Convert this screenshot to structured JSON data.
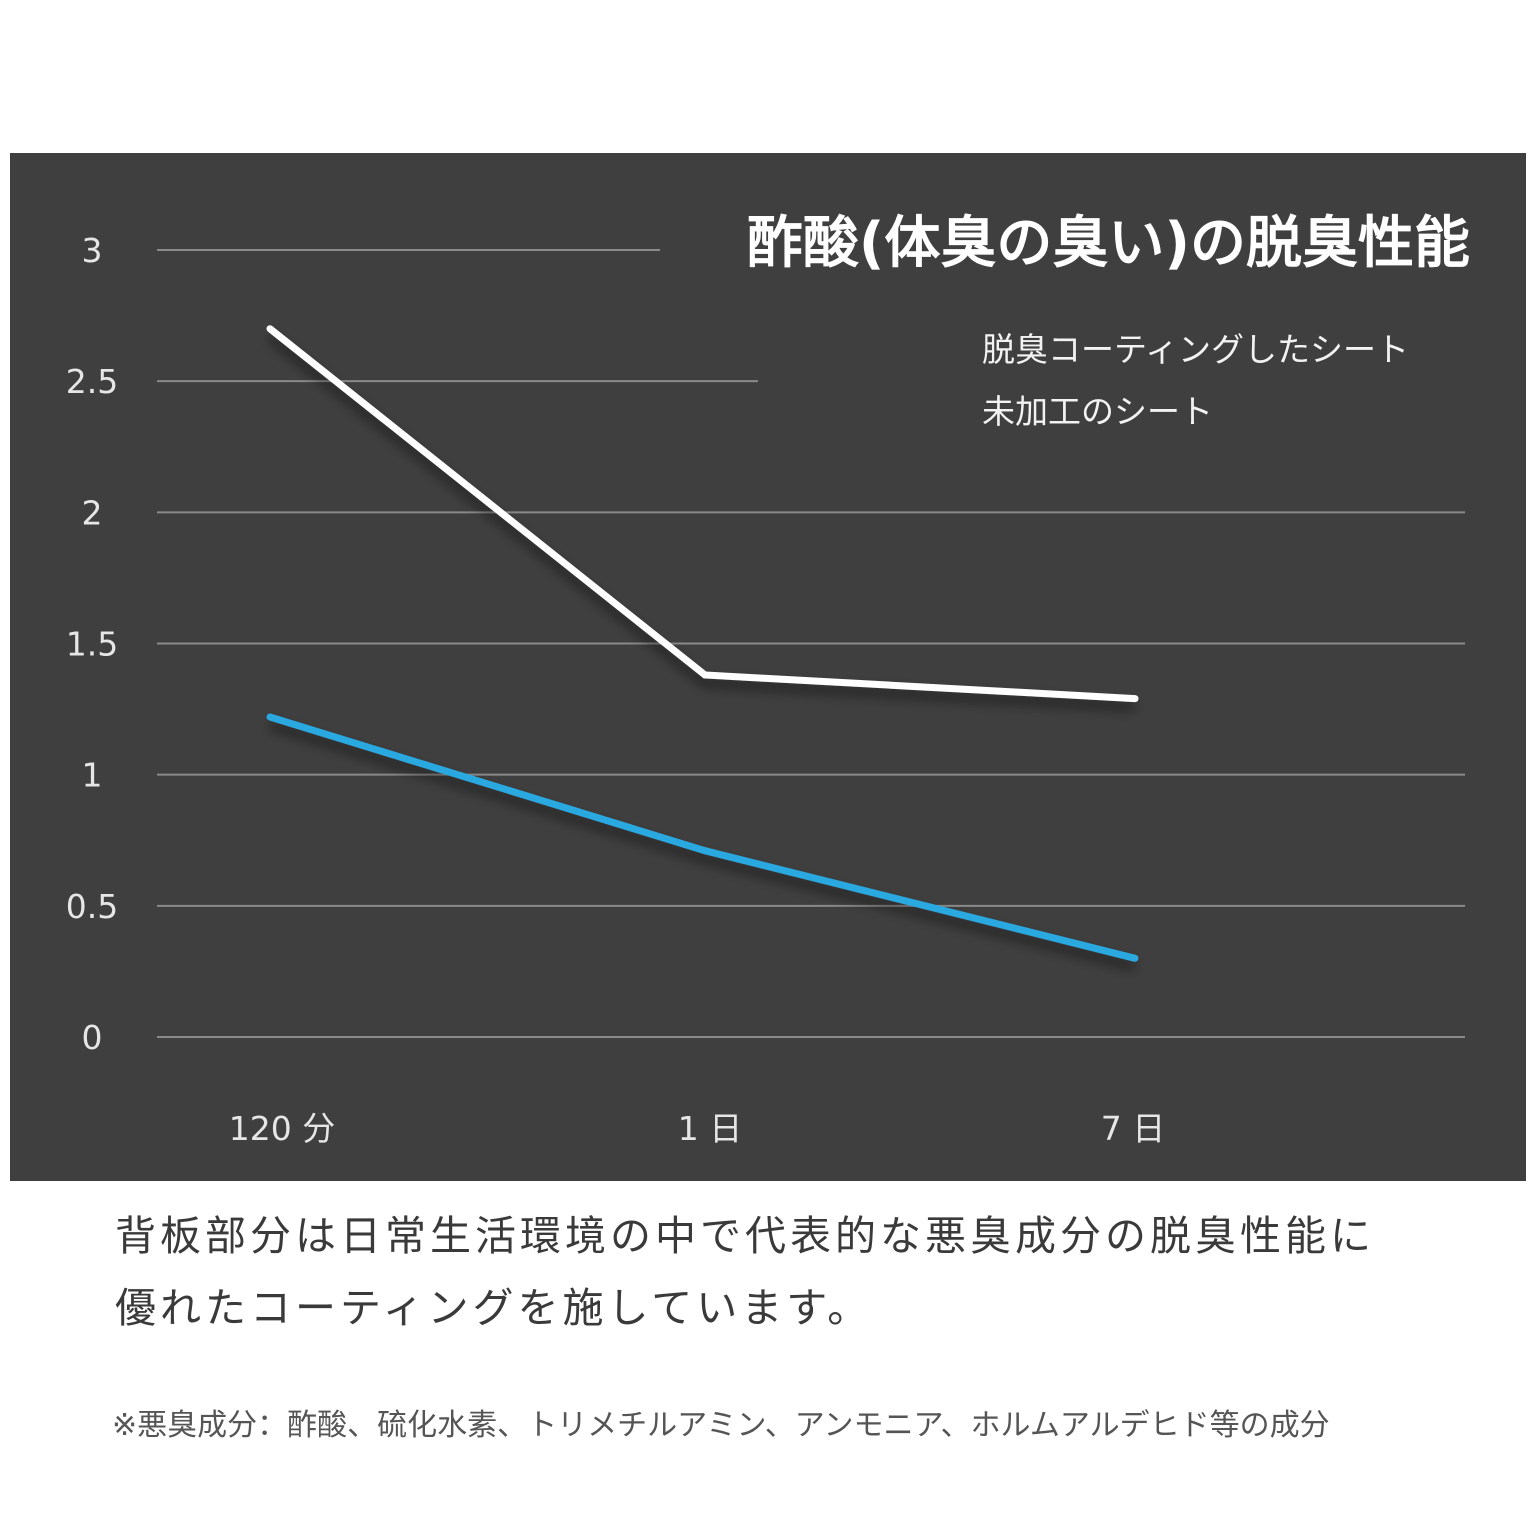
{
  "chart_data": {
    "type": "line",
    "title": "酢酸(体臭の臭い)の脱臭性能",
    "categories": [
      "120 分",
      "1 日",
      "7 日"
    ],
    "y_ticks": [
      "0",
      "0.5",
      "1",
      "1.5",
      "2",
      "2.5",
      "3"
    ],
    "ylim": [
      0,
      3
    ],
    "grid": true,
    "legend_position": "top-right",
    "series": [
      {
        "name": "脱臭コーティングしたシート",
        "values": [
          1.22,
          0.71,
          0.3
        ],
        "color": "#2ba8e0"
      },
      {
        "name": "未加工のシート",
        "values": [
          2.7,
          1.38,
          1.29
        ],
        "color": "#ffffff"
      }
    ]
  },
  "caption": {
    "line1": "背板部分は日常生活環境の中で代表的な悪臭成分の脱臭性能に",
    "line2": "優れたコーティングを施しています。"
  },
  "footnote": "※悪臭成分：酢酸、硫化水素、トリメチルアミン、アンモニア、ホルムアルデヒド等の成分"
}
